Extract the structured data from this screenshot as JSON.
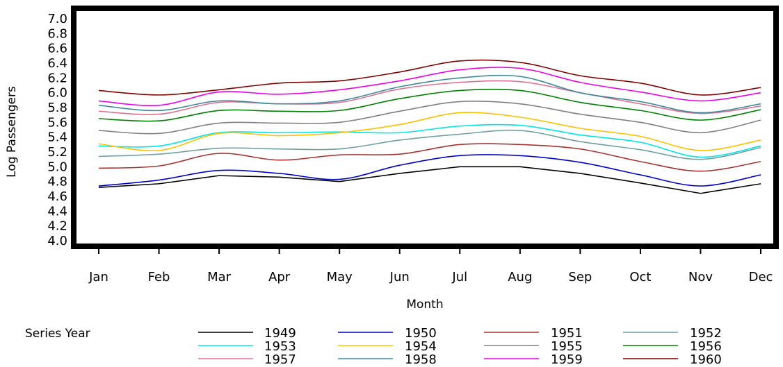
{
  "chart_data": {
    "type": "line",
    "title": "",
    "xlabel": "Month",
    "ylabel": "Log Passengers",
    "ylim": [
      4.0,
      7.0
    ],
    "yticks": [
      "4.0",
      "4.2",
      "4.4",
      "4.6",
      "4.8",
      "5.0",
      "5.2",
      "5.4",
      "5.6",
      "5.8",
      "6.0",
      "6.2",
      "6.4",
      "6.6",
      "6.8",
      "7.0"
    ],
    "categories": [
      "Jan",
      "Feb",
      "Mar",
      "Apr",
      "May",
      "Jun",
      "Jul",
      "Aug",
      "Sep",
      "Oct",
      "Nov",
      "Dec"
    ],
    "grid": false,
    "legend_title": "Series Year",
    "legend_position": "bottom",
    "series": [
      {
        "name": "1949",
        "color": "#000000",
        "smooth": false,
        "values": [
          4.72,
          4.77,
          4.88,
          4.86,
          4.8,
          4.91,
          5.0,
          5.0,
          4.91,
          4.78,
          4.64,
          4.77
        ]
      },
      {
        "name": "1950",
        "color": "#0000cc",
        "smooth": true,
        "values": [
          4.74,
          4.82,
          4.95,
          4.91,
          4.83,
          5.02,
          5.15,
          5.15,
          5.06,
          4.89,
          4.74,
          4.89
        ]
      },
      {
        "name": "1951",
        "color": "#a83232",
        "smooth": true,
        "values": [
          4.98,
          5.01,
          5.18,
          5.09,
          5.16,
          5.17,
          5.3,
          5.3,
          5.24,
          5.07,
          4.94,
          5.07
        ]
      },
      {
        "name": "1952",
        "color": "#6f9f9f",
        "smooth": true,
        "values": [
          5.14,
          5.17,
          5.25,
          5.24,
          5.24,
          5.36,
          5.44,
          5.49,
          5.34,
          5.23,
          5.1,
          5.26
        ]
      },
      {
        "name": "1953",
        "color": "#00e5e5",
        "smooth": true,
        "values": [
          5.28,
          5.28,
          5.46,
          5.46,
          5.47,
          5.46,
          5.55,
          5.56,
          5.43,
          5.33,
          5.13,
          5.28
        ]
      },
      {
        "name": "1954",
        "color": "#ffc000",
        "smooth": true,
        "values": [
          5.31,
          5.22,
          5.45,
          5.42,
          5.46,
          5.57,
          5.73,
          5.67,
          5.52,
          5.41,
          5.22,
          5.36
        ]
      },
      {
        "name": "1955",
        "color": "#808080",
        "smooth": true,
        "values": [
          5.49,
          5.45,
          5.59,
          5.59,
          5.6,
          5.75,
          5.88,
          5.85,
          5.71,
          5.6,
          5.46,
          5.63
        ]
      },
      {
        "name": "1956",
        "color": "#008000",
        "smooth": true,
        "values": [
          5.65,
          5.62,
          5.76,
          5.75,
          5.76,
          5.92,
          6.03,
          6.03,
          5.87,
          5.76,
          5.63,
          5.77
        ]
      },
      {
        "name": "1957",
        "color": "#e07090",
        "smooth": true,
        "values": [
          5.75,
          5.71,
          5.87,
          5.85,
          5.87,
          6.05,
          6.14,
          6.15,
          6.0,
          5.85,
          5.72,
          5.82
        ]
      },
      {
        "name": "1958",
        "color": "#3f8a9a",
        "smooth": true,
        "values": [
          5.83,
          5.76,
          5.89,
          5.85,
          5.89,
          6.08,
          6.2,
          6.22,
          6.0,
          5.88,
          5.73,
          5.85
        ]
      },
      {
        "name": "1959",
        "color": "#ee00ee",
        "smooth": true,
        "values": [
          5.89,
          5.83,
          6.01,
          5.98,
          6.04,
          6.16,
          6.31,
          6.33,
          6.14,
          6.01,
          5.89,
          6.0
        ]
      },
      {
        "name": "1960",
        "color": "#800000",
        "smooth": true,
        "values": [
          6.03,
          5.97,
          6.04,
          6.13,
          6.16,
          6.28,
          6.43,
          6.41,
          6.23,
          6.13,
          5.97,
          6.07
        ]
      }
    ]
  }
}
